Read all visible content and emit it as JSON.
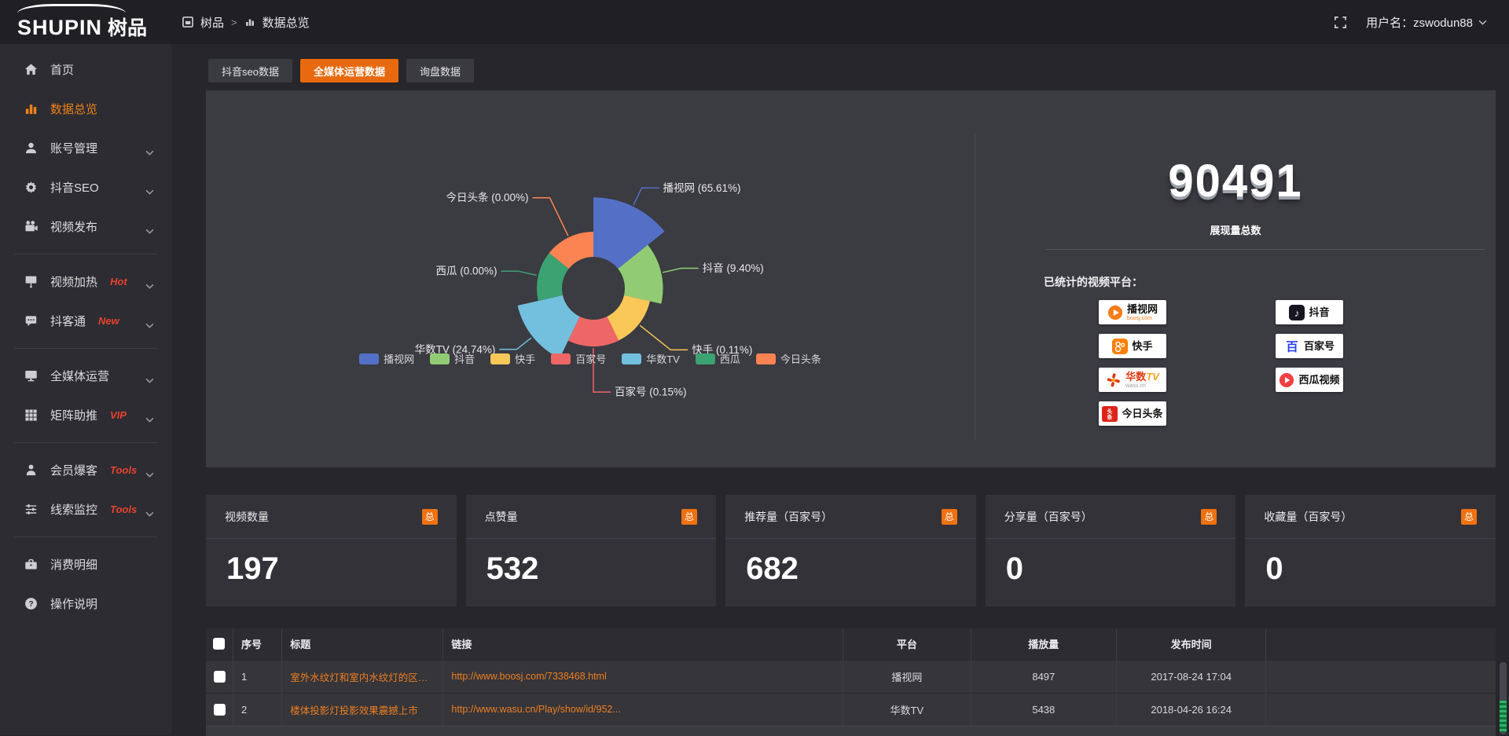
{
  "topbar": {
    "logo_primary": "SHUPIN",
    "logo_secondary": "树品",
    "breadcrumb": {
      "root": "树品",
      "separator": ">",
      "current": "数据总览"
    },
    "user": "用户名：zswodun88"
  },
  "sidebar": {
    "items": [
      {
        "label": "首页",
        "icon": "home-icon",
        "active": false,
        "chevron": false,
        "badge": "",
        "divider_after": false
      },
      {
        "label": "数据总览",
        "icon": "bar-chart-icon",
        "active": true,
        "chevron": false,
        "badge": "",
        "divider_after": false
      },
      {
        "label": "账号管理",
        "icon": "user-icon",
        "active": false,
        "chevron": true,
        "badge": "",
        "divider_after": false
      },
      {
        "label": "抖音SEO",
        "icon": "gear-icon",
        "active": false,
        "chevron": true,
        "badge": "",
        "divider_after": false
      },
      {
        "label": "视频发布",
        "icon": "video-camera-icon",
        "active": false,
        "chevron": true,
        "badge": "",
        "divider_after": true
      },
      {
        "label": "视频加热",
        "icon": "projector-icon",
        "active": false,
        "chevron": true,
        "badge": "Hot",
        "divider_after": false
      },
      {
        "label": "抖客通",
        "icon": "chat-icon",
        "active": false,
        "chevron": true,
        "badge": "New",
        "divider_after": true
      },
      {
        "label": "全媒体运营",
        "icon": "monitor-icon",
        "active": false,
        "chevron": true,
        "badge": "",
        "divider_after": false
      },
      {
        "label": "矩阵助推",
        "icon": "grid-icon",
        "active": false,
        "chevron": true,
        "badge": "VIP",
        "divider_after": true
      },
      {
        "label": "会员爆客",
        "icon": "member-icon",
        "active": false,
        "chevron": true,
        "badge": "Tools",
        "divider_after": false
      },
      {
        "label": "线索监控",
        "icon": "sliders-icon",
        "active": false,
        "chevron": true,
        "badge": "Tools",
        "divider_after": true
      },
      {
        "label": "消费明细",
        "icon": "wallet-icon",
        "active": false,
        "chevron": false,
        "badge": "",
        "divider_after": false
      },
      {
        "label": "操作说明",
        "icon": "help-icon",
        "active": false,
        "chevron": false,
        "badge": "",
        "divider_after": false
      }
    ]
  },
  "tabs": [
    {
      "label": "抖音seo数据",
      "active": false
    },
    {
      "label": "全媒体运营数据",
      "active": true
    },
    {
      "label": "询盘数据",
      "active": false
    }
  ],
  "chart_data": {
    "type": "pie",
    "subtype": "nightingale-rose",
    "categories": [
      "播视网",
      "抖音",
      "快手",
      "百家号",
      "华数TV",
      "西瓜",
      "今日头条"
    ],
    "values_percent": [
      65.61,
      9.4,
      0.11,
      0.15,
      24.74,
      0.0,
      0.0
    ],
    "labels": [
      "播视网 (65.61%)",
      "抖音 (9.40%)",
      "快手 (0.11%)",
      "百家号 (0.15%)",
      "华数TV (24.74%)",
      "西瓜 (0.00%)",
      "今日头条 (0.00%)"
    ],
    "colors": [
      "#5470c6",
      "#91cc75",
      "#fac858",
      "#ee6666",
      "#73c0de",
      "#3ba272",
      "#fc8452"
    ],
    "legend": [
      "播视网",
      "抖音",
      "快手",
      "百家号",
      "华数TV",
      "西瓜",
      "今日头条"
    ],
    "legend_position": "bottom"
  },
  "summary": {
    "total": "90491",
    "total_caption": "展现量总数",
    "platforms_title": "已统计的视频平台："
  },
  "platforms": {
    "left": [
      {
        "name": "播视网",
        "sub": "boosj.com",
        "logo": "boosj-logo"
      },
      {
        "name": "快手",
        "sub": "",
        "logo": "kuaishou-logo"
      },
      {
        "name": "华数TV",
        "sub": "wasu.cn",
        "logo": "wasu-logo"
      },
      {
        "name": "今日头条",
        "sub": "",
        "logo": "toutiao-logo"
      }
    ],
    "right": [
      {
        "name": "抖音",
        "sub": "",
        "logo": "douyin-logo"
      },
      {
        "name": "百家号",
        "sub": "",
        "logo": "baijiahao-logo"
      },
      {
        "name": "西瓜视频",
        "sub": "",
        "logo": "xigua-logo"
      }
    ]
  },
  "stat_cards": [
    {
      "title": "视频数量",
      "badge": "总",
      "value": "197"
    },
    {
      "title": "点赞量",
      "badge": "总",
      "value": "532"
    },
    {
      "title": "推荐量（百家号）",
      "badge": "总",
      "value": "682"
    },
    {
      "title": "分享量（百家号）",
      "badge": "总",
      "value": "0"
    },
    {
      "title": "收藏量（百家号）",
      "badge": "总",
      "value": "0"
    }
  ],
  "table": {
    "headers": [
      "",
      "序号",
      "标题",
      "链接",
      "平台",
      "播放量",
      "发布时间",
      ""
    ],
    "rows": [
      {
        "index": "1",
        "title": "室外水纹灯和室内水纹灯的区别和简介",
        "link": "http://www.boosj.com/7338468.html",
        "platform": "播视网",
        "views": "8497",
        "published": "2017-08-24 17:04"
      },
      {
        "index": "2",
        "title": "楼体投影灯投影效果震撼上市",
        "link": "http://www.wasu.cn/Play/show/id/952...",
        "platform": "华数TV",
        "views": "5438",
        "published": "2018-04-26 16:24"
      }
    ]
  }
}
